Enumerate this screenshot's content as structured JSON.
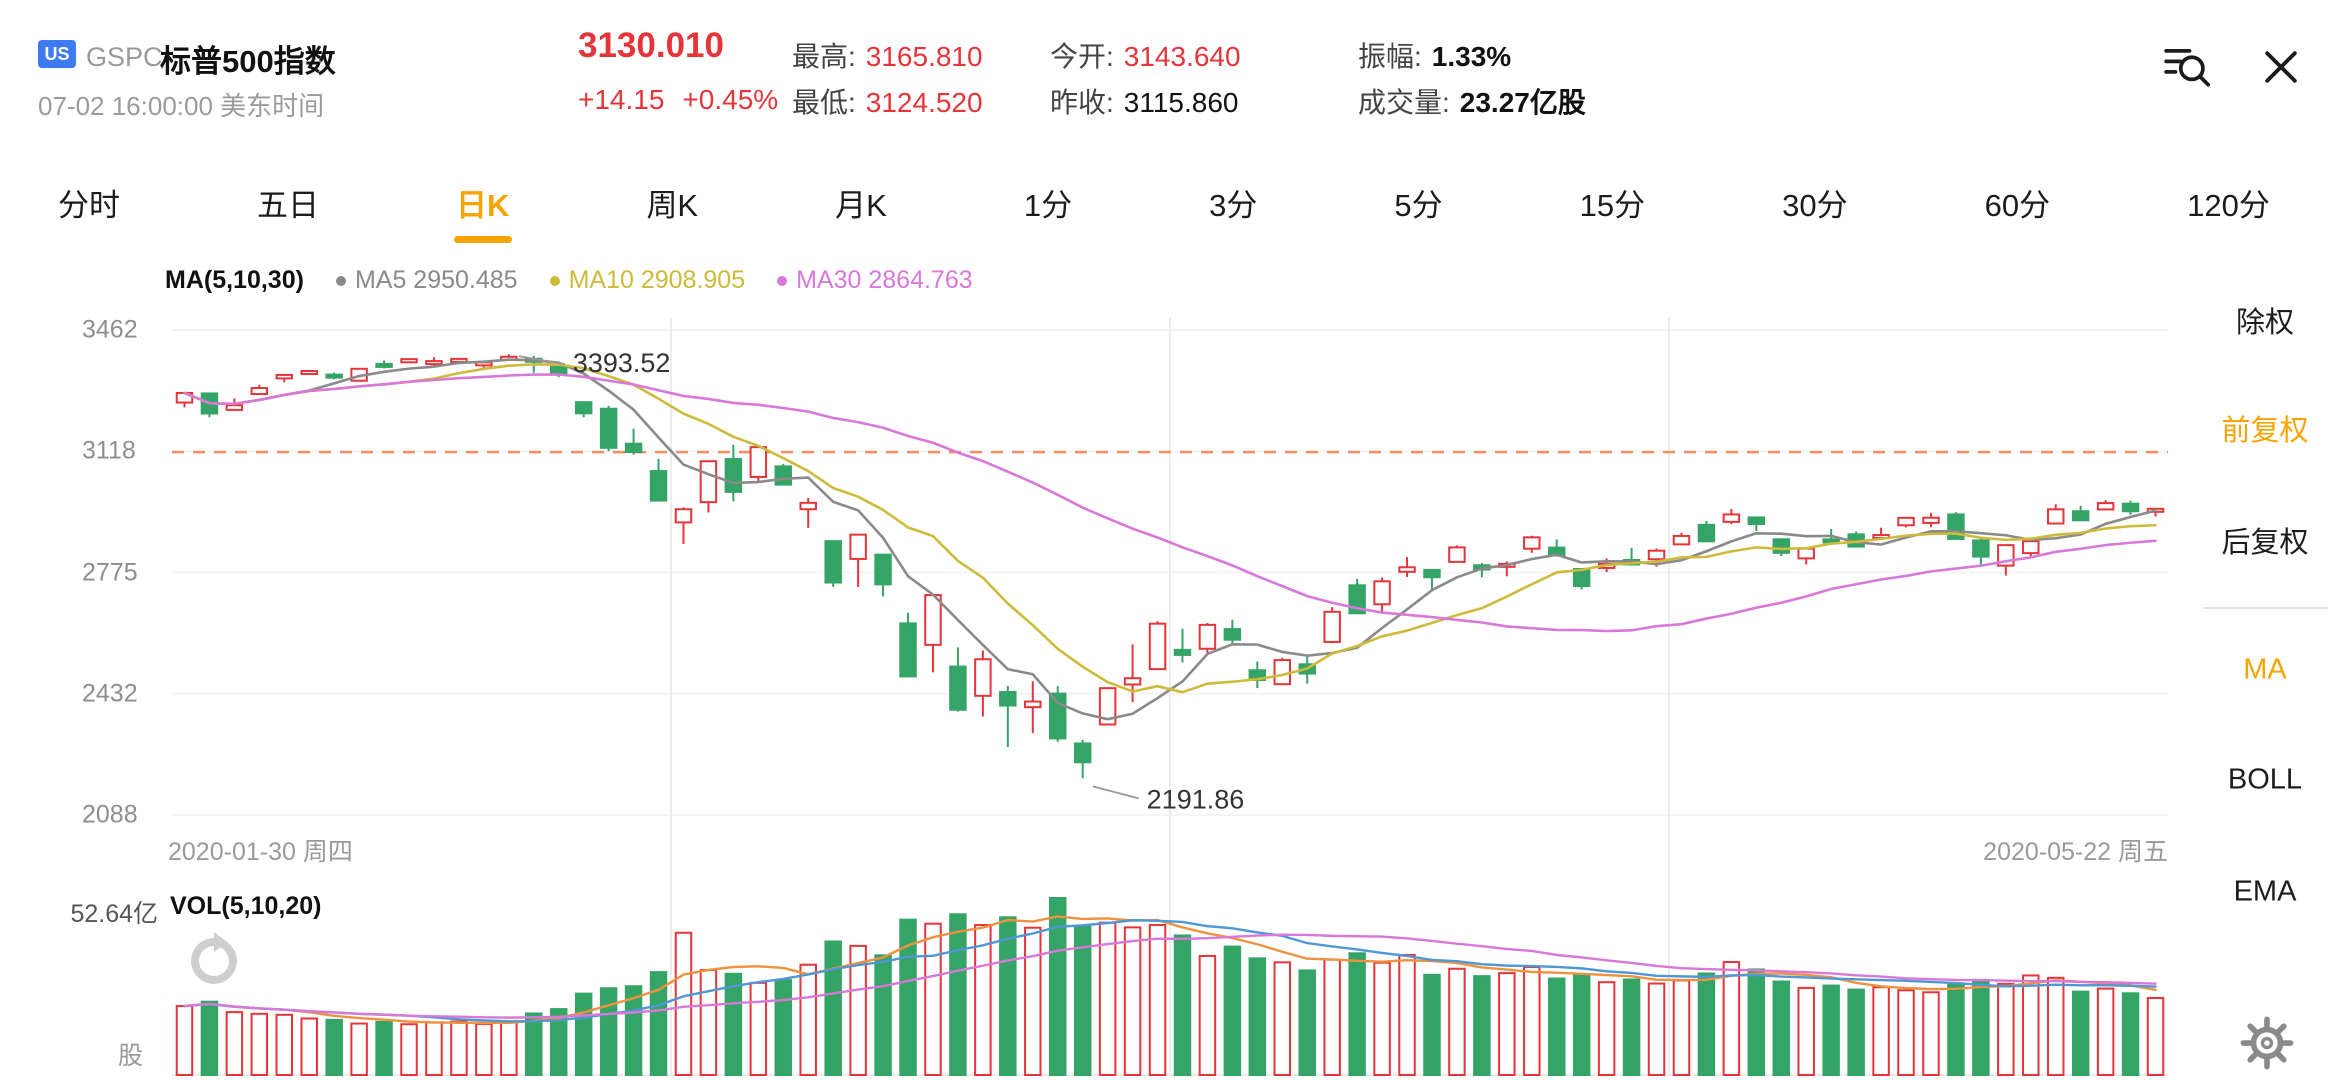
{
  "theme": {
    "accent": "#f7a400",
    "up_red": "#e5353a",
    "down_green": "#35a467",
    "badge_blue": "#3c7bf0"
  },
  "header": {
    "market_badge": "US",
    "symbol": "GSPC",
    "name": "标普500指数",
    "datetime": "07-02 16:00:00 美东时间",
    "price": "3130.010",
    "change": "+14.15",
    "change_pct": "+0.45%"
  },
  "stats": {
    "high_label": "最高:",
    "high_value": "3165.810",
    "low_label": "最低:",
    "low_value": "3124.520",
    "open_label": "今开:",
    "open_value": "3143.640",
    "prev_close_label": "昨收:",
    "prev_close_value": "3115.860",
    "amplitude_label": "振幅:",
    "amplitude_value": "1.33%",
    "volume_label": "成交量:",
    "volume_value": "23.27亿股"
  },
  "icons": {
    "search": "magnifier-with-lines",
    "close": "✕",
    "refresh": "⟳",
    "settings": "⚙"
  },
  "tabs": [
    {
      "label": "分时",
      "active": false
    },
    {
      "label": "五日",
      "active": false
    },
    {
      "label": "日K",
      "active": true
    },
    {
      "label": "周K",
      "active": false
    },
    {
      "label": "月K",
      "active": false
    },
    {
      "label": "1分",
      "active": false
    },
    {
      "label": "3分",
      "active": false
    },
    {
      "label": "5分",
      "active": false
    },
    {
      "label": "15分",
      "active": false
    },
    {
      "label": "30分",
      "active": false
    },
    {
      "label": "60分",
      "active": false
    },
    {
      "label": "120分",
      "active": false
    }
  ],
  "legend": {
    "title": "MA(5,10,30)",
    "items": [
      {
        "name": "MA5",
        "text": "MA5 2950.485",
        "color": "#8a8a8a"
      },
      {
        "name": "MA10",
        "text": "MA10 2908.905",
        "color": "#cdbb3a"
      },
      {
        "name": "MA30",
        "text": "MA30 2864.763",
        "color": "#d878d8"
      }
    ]
  },
  "volume_pane": {
    "scale_max_label": "52.64亿",
    "indicator_label": "VOL(5,10,20)",
    "unit_label": "股"
  },
  "sidebar": {
    "items": [
      {
        "label": "除权",
        "active": false
      },
      {
        "label": "前复权",
        "active": true
      },
      {
        "label": "后复权",
        "active": false
      },
      {
        "label": "MA",
        "active": true
      },
      {
        "label": "BOLL",
        "active": false
      },
      {
        "label": "EMA",
        "active": false
      }
    ]
  },
  "chart_data": {
    "type": "candlestick_with_volume",
    "y_axis_ticks": [
      3462,
      3118,
      2775,
      2432,
      2088
    ],
    "x_axis_labels": {
      "left": "2020-01-30 周四",
      "right": "2020-05-22 周五"
    },
    "prev_close_line": 3115.86,
    "annotations": {
      "high": "3393.52",
      "low": "2191.86"
    },
    "ma_periods": [
      5,
      10,
      30
    ],
    "vol_ma_periods": [
      5,
      10,
      20
    ],
    "volume_scale_max": 52.64,
    "colors": {
      "up": "#e5353a",
      "down": "#35a467",
      "ma5": "#8a8a8a",
      "ma10": "#cdbb3a",
      "ma30": "#d878d8",
      "vol5": "#ef9240",
      "vol10": "#4f97d5",
      "vol20": "#d878d8",
      "prev_close_dash": "#ef8f62",
      "grid": "#ededed"
    },
    "dates": [
      "2020-01-30",
      "2020-01-31",
      "2020-02-03",
      "2020-02-04",
      "2020-02-05",
      "2020-02-06",
      "2020-02-07",
      "2020-02-10",
      "2020-02-11",
      "2020-02-12",
      "2020-02-13",
      "2020-02-14",
      "2020-02-18",
      "2020-02-19",
      "2020-02-20",
      "2020-02-21",
      "2020-02-24",
      "2020-02-25",
      "2020-02-26",
      "2020-02-27",
      "2020-02-28",
      "2020-03-02",
      "2020-03-03",
      "2020-03-04",
      "2020-03-05",
      "2020-03-06",
      "2020-03-09",
      "2020-03-10",
      "2020-03-11",
      "2020-03-12",
      "2020-03-13",
      "2020-03-16",
      "2020-03-17",
      "2020-03-18",
      "2020-03-19",
      "2020-03-20",
      "2020-03-23",
      "2020-03-24",
      "2020-03-25",
      "2020-03-26",
      "2020-03-27",
      "2020-03-30",
      "2020-03-31",
      "2020-04-01",
      "2020-04-02",
      "2020-04-03",
      "2020-04-06",
      "2020-04-07",
      "2020-04-08",
      "2020-04-09",
      "2020-04-13",
      "2020-04-14",
      "2020-04-15",
      "2020-04-16",
      "2020-04-17",
      "2020-04-20",
      "2020-04-21",
      "2020-04-22",
      "2020-04-23",
      "2020-04-24",
      "2020-04-27",
      "2020-04-28",
      "2020-04-29",
      "2020-04-30",
      "2020-05-01",
      "2020-05-04",
      "2020-05-05",
      "2020-05-06",
      "2020-05-07",
      "2020-05-08",
      "2020-05-11",
      "2020-05-12",
      "2020-05-13",
      "2020-05-14",
      "2020-05-15",
      "2020-05-18",
      "2020-05-19",
      "2020-05-20",
      "2020-05-21",
      "2020-05-22"
    ],
    "ohlc": [
      [
        3256.45,
        3285.91,
        3242.8,
        3283.66
      ],
      [
        3282.33,
        3282.33,
        3214.68,
        3225.52
      ],
      [
        3235.66,
        3268.44,
        3235.66,
        3248.92
      ],
      [
        3280.61,
        3306.92,
        3280.61,
        3297.59
      ],
      [
        3324.91,
        3337.58,
        3313.75,
        3334.69
      ],
      [
        3344.92,
        3347.96,
        3334.39,
        3345.78
      ],
      [
        3335.54,
        3341.42,
        3322.12,
        3327.71
      ],
      [
        3318.28,
        3352.26,
        3317.77,
        3352.09
      ],
      [
        3365.87,
        3375.63,
        3352.72,
        3357.75
      ],
      [
        3370.5,
        3381.47,
        3369.72,
        3379.45
      ],
      [
        3365.9,
        3385.09,
        3360.52,
        3373.94
      ],
      [
        3378.08,
        3380.69,
        3366.15,
        3380.16
      ],
      [
        3369.04,
        3375.01,
        3355.61,
        3370.29
      ],
      [
        3380.39,
        3393.52,
        3378.83,
        3386.15
      ],
      [
        3380.45,
        3389.15,
        3341.02,
        3373.23
      ],
      [
        3360.5,
        3360.76,
        3328.45,
        3337.75
      ],
      [
        3257.61,
        3259.81,
        3214.65,
        3225.89
      ],
      [
        3238.94,
        3246.99,
        3118.77,
        3128.21
      ],
      [
        3139.9,
        3182.51,
        3108.99,
        3116.39
      ],
      [
        3062.54,
        3097.07,
        2977.39,
        2978.76
      ],
      [
        2916.9,
        2959.72,
        2855.84,
        2954.22
      ],
      [
        2974.28,
        3090.96,
        2945.19,
        3090.23
      ],
      [
        3096.46,
        3136.72,
        2976.63,
        3003.37
      ],
      [
        3045.75,
        3130.97,
        3034.38,
        3130.12
      ],
      [
        3075.7,
        3083.04,
        3024.39,
        3023.94
      ],
      [
        2954.2,
        2985.93,
        2901.54,
        2972.37
      ],
      [
        2863.89,
        2863.89,
        2734.43,
        2746.56
      ],
      [
        2813.48,
        2882.59,
        2734.0,
        2882.23
      ],
      [
        2825.6,
        2825.6,
        2707.22,
        2741.38
      ],
      [
        2630.86,
        2660.95,
        2478.86,
        2480.64
      ],
      [
        2569.99,
        2711.33,
        2492.37,
        2711.02
      ],
      [
        2508.59,
        2562.98,
        2380.94,
        2386.13
      ],
      [
        2425.66,
        2553.93,
        2367.04,
        2529.19
      ],
      [
        2436.5,
        2453.57,
        2280.52,
        2398.1
      ],
      [
        2393.48,
        2466.97,
        2319.78,
        2409.39
      ],
      [
        2431.94,
        2453.01,
        2295.56,
        2304.92
      ],
      [
        2290.71,
        2300.73,
        2191.86,
        2237.4
      ],
      [
        2344.44,
        2449.71,
        2344.44,
        2447.33
      ],
      [
        2457.77,
        2571.42,
        2407.53,
        2475.56
      ],
      [
        2501.29,
        2637.01,
        2500.72,
        2630.07
      ],
      [
        2555.87,
        2615.91,
        2520.02,
        2541.47
      ],
      [
        2558.98,
        2631.8,
        2545.28,
        2626.65
      ],
      [
        2614.69,
        2641.39,
        2571.15,
        2584.59
      ],
      [
        2498.08,
        2522.75,
        2447.49,
        2470.5
      ],
      [
        2458.54,
        2533.22,
        2455.79,
        2526.9
      ],
      [
        2514.92,
        2538.18,
        2459.96,
        2488.65
      ],
      [
        2578.28,
        2676.85,
        2574.57,
        2663.68
      ],
      [
        2738.65,
        2756.89,
        2657.67,
        2659.41
      ],
      [
        2685.0,
        2760.75,
        2663.3,
        2749.98
      ],
      [
        2776.99,
        2818.57,
        2762.36,
        2789.82
      ],
      [
        2782.46,
        2782.46,
        2721.17,
        2761.63
      ],
      [
        2805.1,
        2851.85,
        2805.1,
        2846.06
      ],
      [
        2795.64,
        2801.88,
        2761.54,
        2783.36
      ],
      [
        2799.34,
        2806.51,
        2764.32,
        2799.55
      ],
      [
        2842.43,
        2879.22,
        2830.88,
        2874.56
      ],
      [
        2845.62,
        2868.98,
        2820.43,
        2823.16
      ],
      [
        2784.99,
        2785.54,
        2727.1,
        2736.56
      ],
      [
        2787.89,
        2815.1,
        2775.96,
        2799.31
      ],
      [
        2810.42,
        2844.9,
        2794.26,
        2797.8
      ],
      [
        2812.64,
        2842.71,
        2791.76,
        2836.74
      ],
      [
        2854.65,
        2887.72,
        2852.89,
        2878.48
      ],
      [
        2909.96,
        2921.15,
        2860.71,
        2863.39
      ],
      [
        2918.48,
        2954.86,
        2912.16,
        2939.51
      ],
      [
        2930.91,
        2930.91,
        2892.47,
        2912.43
      ],
      [
        2869.09,
        2869.09,
        2821.61,
        2830.71
      ],
      [
        2815.01,
        2844.24,
        2797.85,
        2842.74
      ],
      [
        2868.88,
        2898.23,
        2863.82,
        2868.44
      ],
      [
        2883.14,
        2891.11,
        2847.65,
        2848.42
      ],
      [
        2878.34,
        2901.95,
        2876.26,
        2881.19
      ],
      [
        2908.83,
        2932.61,
        2902.88,
        2929.8
      ],
      [
        2915.46,
        2944.25,
        2903.44,
        2930.19
      ],
      [
        2939.54,
        2945.82,
        2869.59,
        2870.12
      ],
      [
        2865.86,
        2874.14,
        2793.15,
        2820.0
      ],
      [
        2794.54,
        2852.8,
        2766.64,
        2852.5
      ],
      [
        2829.95,
        2865.01,
        2816.78,
        2863.7
      ],
      [
        2913.86,
        2968.09,
        2913.86,
        2953.91
      ],
      [
        2948.59,
        2964.21,
        2922.35,
        2922.94
      ],
      [
        2953.63,
        2980.29,
        2953.63,
        2971.61
      ],
      [
        2969.95,
        2978.5,
        2938.61,
        2948.51
      ],
      [
        2948.05,
        2956.76,
        2933.59,
        2955.45
      ]
    ],
    "volumes": [
      20.5,
      21.8,
      18.7,
      18.2,
      17.9,
      16.8,
      16.4,
      15.3,
      15.8,
      15.1,
      15.6,
      15.9,
      15.2,
      15.7,
      18.3,
      19.6,
      24.2,
      25.8,
      26.4,
      30.6,
      42.3,
      31.2,
      30.1,
      27.4,
      28.2,
      32.8,
      39.7,
      38.4,
      35.6,
      46.2,
      45.0,
      47.8,
      44.6,
      46.9,
      43.8,
      52.64,
      44.1,
      45.3,
      43.9,
      44.6,
      41.5,
      35.4,
      38.2,
      34.7,
      33.5,
      31.1,
      34.3,
      36.2,
      33.4,
      35.7,
      29.8,
      31.6,
      29.4,
      30.3,
      32.1,
      28.7,
      29.9,
      27.6,
      28.4,
      27.2,
      28.1,
      30.2,
      33.6,
      31.4,
      27.8,
      25.9,
      26.6,
      25.4,
      26.1,
      25.2,
      24.6,
      26.8,
      28.3,
      27.1,
      29.6,
      28.9,
      24.8,
      25.7,
      24.3,
      22.9
    ]
  }
}
